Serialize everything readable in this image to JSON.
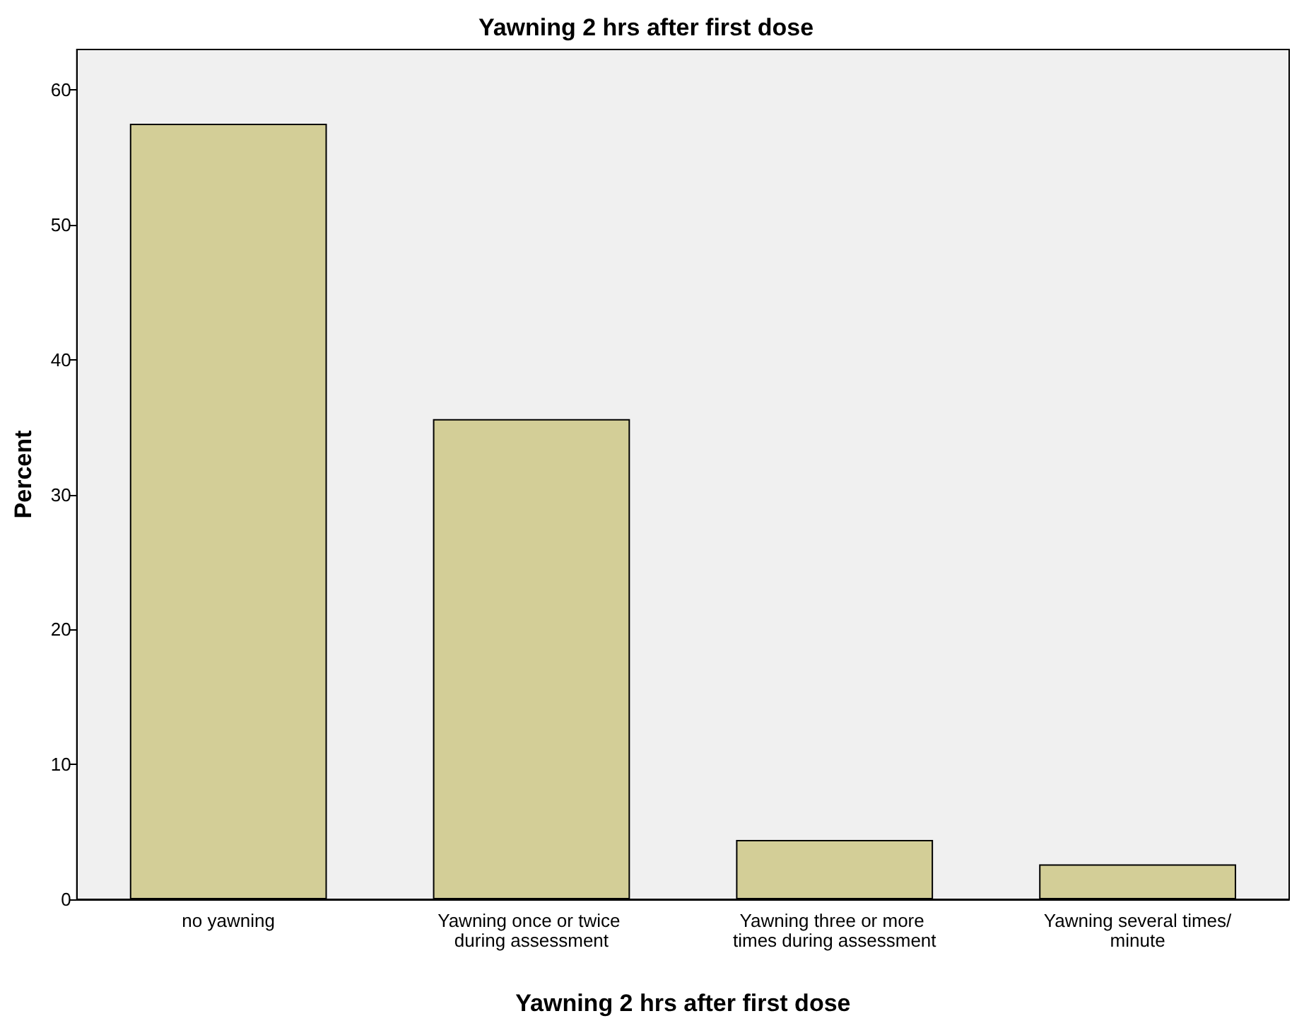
{
  "chart_data": {
    "type": "bar",
    "title": "Yawning 2 hrs after first dose",
    "xlabel": "Yawning 2 hrs after first dose",
    "ylabel": "Percent",
    "categories": [
      "no yawning",
      "Yawning once or twice during assessment",
      "Yawning three or more times during assessment",
      "Yawning several times/minute"
    ],
    "values": [
      57.5,
      35.6,
      4.4,
      2.6
    ],
    "color": "#d3ce97",
    "ylim": [
      0,
      63
    ],
    "yticks": [
      0,
      10,
      20,
      30,
      40,
      50,
      60
    ],
    "grid": false
  }
}
